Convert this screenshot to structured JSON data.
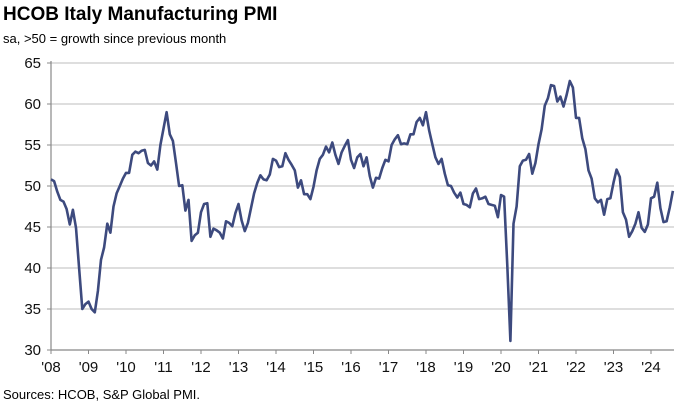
{
  "chart_data": {
    "type": "line",
    "title": "HCOB Italy Manufacturing PMI",
    "subtitle": "sa, >50 = growth since previous month",
    "xlabel": "",
    "ylabel": "",
    "ylim": [
      30,
      65
    ],
    "yticks": [
      "65",
      "60",
      "55",
      "50",
      "45",
      "40",
      "35",
      "30"
    ],
    "xticks": [
      "'08",
      "'09",
      "'10",
      "'11",
      "'12",
      "'13",
      "'14",
      "'15",
      "'16",
      "'17",
      "'18",
      "'19",
      "'20",
      "'21",
      "'22",
      "'23",
      "'24"
    ],
    "grid": "horizontal",
    "line_color": "#3d4a7e",
    "frequency": "monthly",
    "values_by_year": {
      "2008": [
        50.8,
        50.6,
        49.3,
        48.3,
        48.1,
        47.2,
        45.3,
        47.1,
        44.9,
        40.0,
        35.0,
        35.6
      ],
      "2009": [
        35.9,
        35.0,
        34.6,
        37.2,
        41.0,
        42.5,
        45.4,
        44.3,
        47.5,
        49.1,
        50.0,
        50.9
      ],
      "2010": [
        51.6,
        51.6,
        53.8,
        54.2,
        54.0,
        54.3,
        54.4,
        52.8,
        52.5,
        53.0,
        52.0,
        55.0
      ],
      "2011": [
        57.0,
        59.0,
        56.3,
        55.5,
        52.8,
        50.0,
        50.1,
        47.0,
        48.3,
        43.3,
        44.0,
        44.3
      ],
      "2012": [
        46.8,
        47.8,
        47.9,
        43.8,
        44.8,
        44.6,
        44.3,
        43.6,
        45.7,
        45.5,
        45.1,
        46.7
      ],
      "2013": [
        47.8,
        45.8,
        44.5,
        45.5,
        47.3,
        49.1,
        50.4,
        51.3,
        50.8,
        50.7,
        51.4,
        53.3
      ],
      "2014": [
        53.1,
        52.3,
        52.4,
        54.0,
        53.2,
        52.6,
        51.9,
        49.8,
        50.7,
        49.0,
        49.0,
        48.4
      ],
      "2015": [
        49.9,
        51.9,
        53.3,
        53.8,
        54.8,
        54.1,
        55.3,
        53.8,
        52.7,
        54.1,
        54.9,
        55.6
      ],
      "2016": [
        53.2,
        52.2,
        53.5,
        53.9,
        52.4,
        53.5,
        51.2,
        49.8,
        51.0,
        50.9,
        52.2,
        53.2
      ],
      "2017": [
        53.0,
        55.0,
        55.7,
        56.2,
        55.1,
        55.2,
        55.1,
        56.3,
        56.3,
        57.8,
        58.3,
        57.4
      ],
      "2018": [
        59.0,
        56.8,
        55.1,
        53.5,
        52.7,
        53.3,
        51.5,
        50.1,
        50.0,
        49.2,
        48.6,
        49.2
      ],
      "2019": [
        47.8,
        47.7,
        47.4,
        49.1,
        49.7,
        48.4,
        48.5,
        48.7,
        47.8,
        47.7,
        47.6,
        46.2
      ],
      "2020": [
        48.9,
        48.7,
        40.3,
        31.1,
        45.4,
        47.5,
        52.4,
        53.1,
        53.2,
        53.9,
        51.5,
        52.8
      ],
      "2021": [
        55.1,
        56.9,
        59.8,
        60.7,
        62.3,
        62.2,
        60.3,
        60.9,
        59.7,
        61.1,
        62.8,
        62.0
      ],
      "2022": [
        58.3,
        58.3,
        55.8,
        54.5,
        51.9,
        50.9,
        48.5,
        48.0,
        48.3,
        46.5,
        48.4,
        48.5
      ],
      "2023": [
        50.4,
        52.0,
        51.1,
        46.8,
        45.9,
        43.8,
        44.5,
        45.4,
        46.8,
        44.9,
        44.4,
        45.3
      ],
      "2024": [
        48.5,
        48.7,
        50.4,
        47.3,
        45.6,
        45.7,
        47.4,
        49.4
      ]
    }
  },
  "source": "Sources: HCOB, S&P Global PMI."
}
